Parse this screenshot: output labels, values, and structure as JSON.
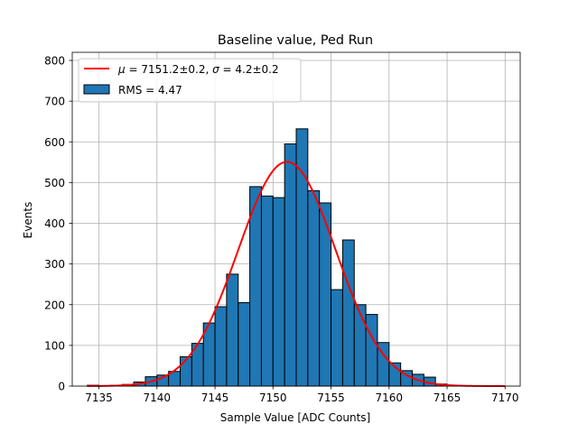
{
  "chart_data": {
    "type": "bar",
    "title": "Baseline value, Ped Run",
    "xlabel": "Sample Value [ADC Counts]",
    "ylabel": "Events",
    "xlim": [
      7132.7,
      7171.3
    ],
    "ylim": [
      0,
      820
    ],
    "xticks": [
      7135,
      7140,
      7145,
      7150,
      7155,
      7160,
      7165,
      7170
    ],
    "yticks": [
      0,
      100,
      200,
      300,
      400,
      500,
      600,
      700,
      800
    ],
    "grid": true,
    "legend_position": "top-left",
    "histogram": {
      "name": "RMS = 4.47",
      "color": "#1f77b4",
      "edge_color": "#000000",
      "bin_width": 1,
      "bins": [
        {
          "x0": 7134,
          "value": 2
        },
        {
          "x0": 7135,
          "value": 1
        },
        {
          "x0": 7136,
          "value": 2
        },
        {
          "x0": 7137,
          "value": 4
        },
        {
          "x0": 7138,
          "value": 10
        },
        {
          "x0": 7139,
          "value": 23
        },
        {
          "x0": 7140,
          "value": 27
        },
        {
          "x0": 7141,
          "value": 36
        },
        {
          "x0": 7142,
          "value": 72
        },
        {
          "x0": 7143,
          "value": 105
        },
        {
          "x0": 7144,
          "value": 155
        },
        {
          "x0": 7145,
          "value": 195
        },
        {
          "x0": 7146,
          "value": 275
        },
        {
          "x0": 7147,
          "value": 205
        },
        {
          "x0": 7148,
          "value": 490
        },
        {
          "x0": 7149,
          "value": 467
        },
        {
          "x0": 7150,
          "value": 463
        },
        {
          "x0": 7151,
          "value": 595
        },
        {
          "x0": 7152,
          "value": 632
        },
        {
          "x0": 7153,
          "value": 480
        },
        {
          "x0": 7154,
          "value": 450
        },
        {
          "x0": 7155,
          "value": 237
        },
        {
          "x0": 7156,
          "value": 359
        },
        {
          "x0": 7157,
          "value": 200
        },
        {
          "x0": 7158,
          "value": 176
        },
        {
          "x0": 7159,
          "value": 107
        },
        {
          "x0": 7160,
          "value": 57
        },
        {
          "x0": 7161,
          "value": 38
        },
        {
          "x0": 7162,
          "value": 29
        },
        {
          "x0": 7163,
          "value": 22
        },
        {
          "x0": 7164,
          "value": 5
        },
        {
          "x0": 7165,
          "value": 2
        },
        {
          "x0": 7166,
          "value": 1
        }
      ]
    },
    "fit": {
      "name": "$\\mu = 7151.2\\pm0.2$, $\\sigma = 4.2\\pm0.2$",
      "color": "#ff0000",
      "mu": 7151.2,
      "sigma": 4.2,
      "amplitude": 551,
      "x_range": [
        7134,
        7170
      ]
    }
  }
}
